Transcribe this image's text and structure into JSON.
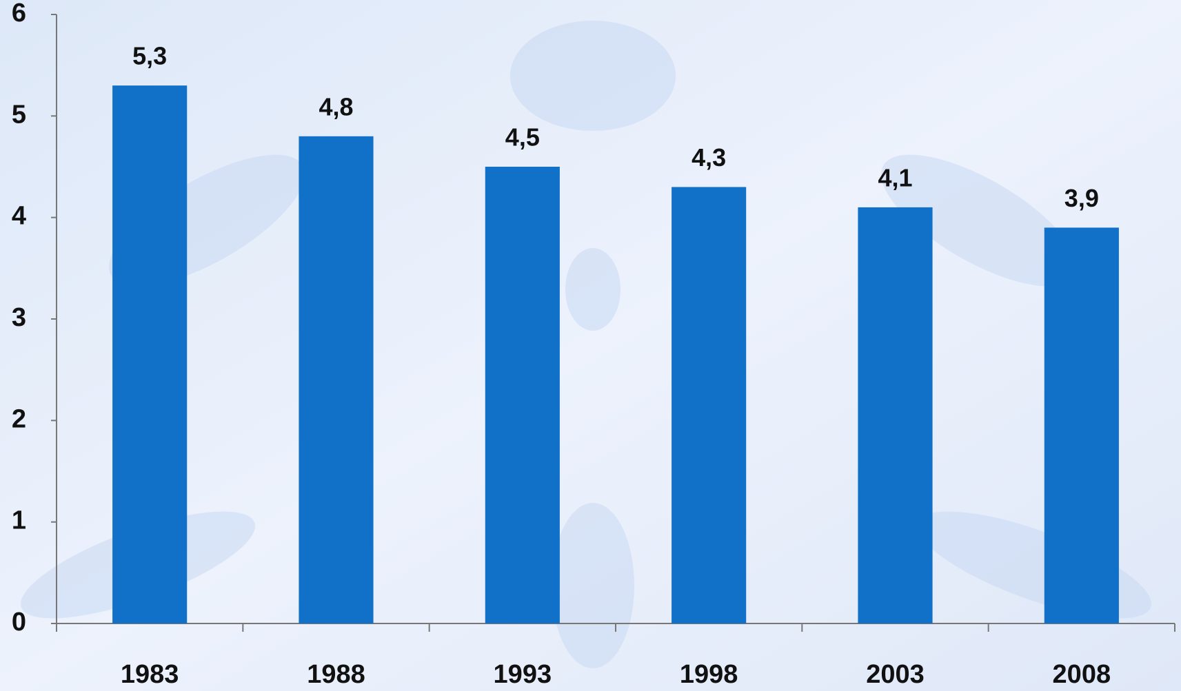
{
  "chart_data": {
    "type": "bar",
    "categories": [
      "1983",
      "1988",
      "1993",
      "1998",
      "2003",
      "2008"
    ],
    "values": [
      5.3,
      4.8,
      4.5,
      4.3,
      4.1,
      3.9
    ],
    "value_labels": [
      "5,3",
      "4,8",
      "4,5",
      "4,3",
      "4,1",
      "3,9"
    ],
    "color": "#1170c8",
    "ylim": [
      0,
      6
    ],
    "yticks": [
      0,
      1,
      2,
      3,
      4,
      5,
      6
    ],
    "grid": false
  }
}
